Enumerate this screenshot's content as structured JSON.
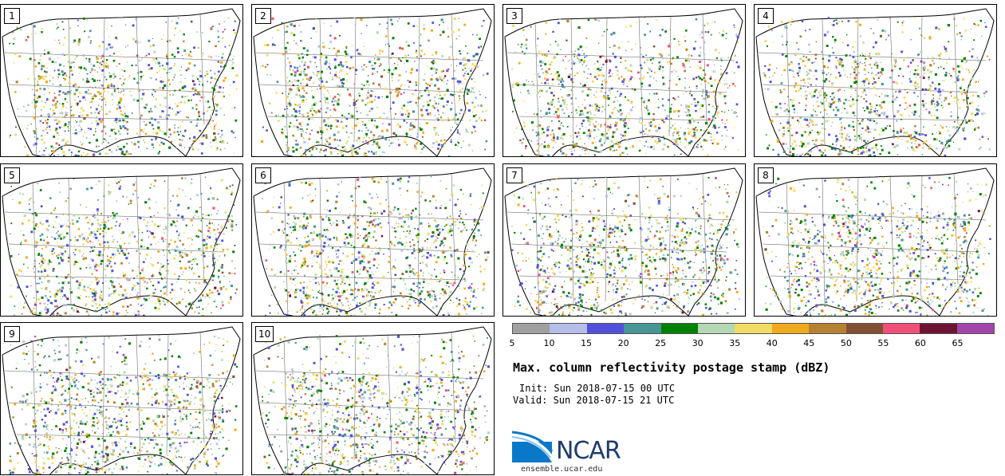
{
  "panels": [
    {
      "label": "1"
    },
    {
      "label": "2"
    },
    {
      "label": "3"
    },
    {
      "label": "4"
    },
    {
      "label": "5"
    },
    {
      "label": "6"
    },
    {
      "label": "7"
    },
    {
      "label": "8"
    },
    {
      "label": "9"
    },
    {
      "label": "10"
    }
  ],
  "colorbar": {
    "colors": [
      "#a0a0a0",
      "#b4bee6",
      "#5050dc",
      "#469696",
      "#008200",
      "#b4d7b4",
      "#f0dc64",
      "#f0aa1e",
      "#b48232",
      "#825032",
      "#f05078",
      "#6e1432",
      "#a046aa"
    ],
    "ticks": [
      "5",
      "10",
      "15",
      "20",
      "25",
      "30",
      "35",
      "40",
      "45",
      "50",
      "55",
      "60",
      "65"
    ]
  },
  "title": "Max. column reflectivity postage stamp (dBZ)",
  "init": "Init: Sun 2018-07-15 00 UTC",
  "valid": "Valid: Sun 2018-07-15 21 UTC",
  "logo_text": "NCAR",
  "url": "ensemble.ucar.edu"
}
